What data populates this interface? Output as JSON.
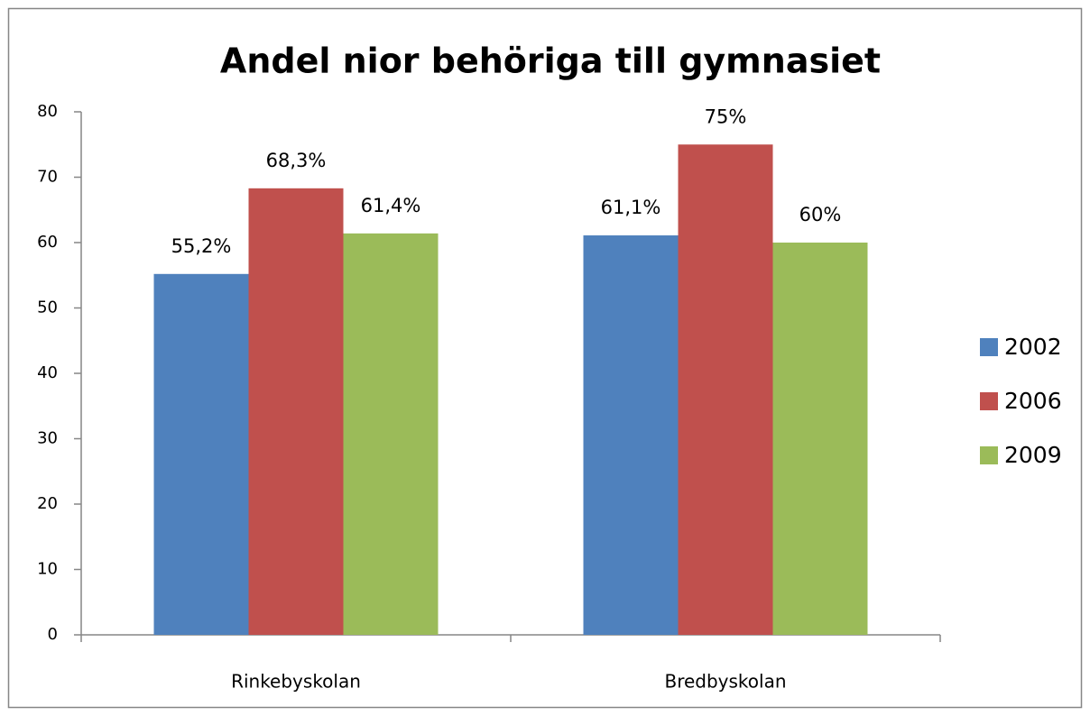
{
  "chart_data": {
    "type": "bar",
    "title": "Andel nior behöriga till gymnasiet",
    "categories": [
      "Rinkebyskolan",
      "Bredbyskolan"
    ],
    "series": [
      {
        "name": "2002",
        "color": "#4f81bd",
        "values": [
          55.2,
          61.1
        ],
        "value_labels": [
          "55,2%",
          "61,1%"
        ]
      },
      {
        "name": "2006",
        "color": "#c0504d",
        "values": [
          68.3,
          75
        ],
        "value_labels": [
          "68,3%",
          "75%"
        ]
      },
      {
        "name": "2009",
        "color": "#9bbb59",
        "values": [
          61.4,
          60
        ],
        "value_labels": [
          "61,4%",
          "60%"
        ]
      }
    ],
    "ylim": [
      0,
      80
    ],
    "yticks": [
      0,
      10,
      20,
      30,
      40,
      50,
      60,
      70,
      80
    ],
    "grid": false,
    "legend": "right"
  }
}
